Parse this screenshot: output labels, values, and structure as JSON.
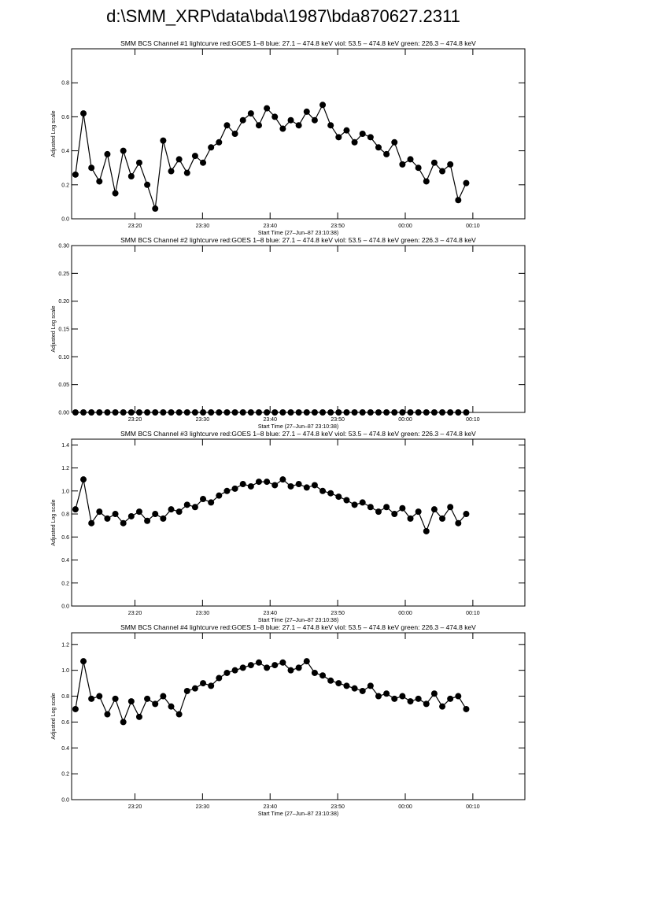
{
  "page_title": "d:\\SMM_XRP\\data\\bda\\1987\\bda870627.2311",
  "chart_data": [
    {
      "type": "line",
      "title": "SMM BCS Channel #1 lightcurve  red:GOES 1–8  blue: 27.1 – 474.8 keV  viol: 53.5 – 474.8 keV  green: 226.3 – 474.8 keV",
      "x_label": "Start Time (27–Jun–87 23:10:38)",
      "y_label": "Adjusted Log scale",
      "color": "#000000",
      "xlim": [
        10.63,
        77.7
      ],
      "ylim": [
        0,
        1.0
      ],
      "xticks": [
        {
          "value": 20,
          "label": "23:20"
        },
        {
          "value": 30,
          "label": "23:30"
        },
        {
          "value": 40,
          "label": "23:40"
        },
        {
          "value": 50,
          "label": "23:50"
        },
        {
          "value": 60,
          "label": "00:00"
        },
        {
          "value": 70,
          "label": "00:10"
        }
      ],
      "yticks": [
        {
          "value": 0,
          "label": "0.0"
        },
        0.2,
        0.4,
        0.6,
        0.8
      ],
      "x": [
        11.2,
        12.38,
        13.56,
        14.74,
        15.92,
        17.1,
        18.28,
        19.46,
        20.64,
        21.82,
        23.0,
        24.18,
        25.36,
        26.54,
        27.72,
        28.9,
        30.08,
        31.26,
        32.44,
        33.62,
        34.8,
        35.98,
        37.16,
        38.34,
        39.52,
        40.7,
        41.88,
        43.06,
        44.24,
        45.42,
        46.6,
        47.78,
        48.96,
        50.14,
        51.32,
        52.5,
        53.68,
        54.86,
        56.04,
        57.22,
        58.4,
        59.58,
        60.76,
        61.94,
        63.12,
        64.3,
        65.48,
        66.66,
        67.84,
        69.02
      ],
      "values": [
        0.26,
        0.62,
        0.3,
        0.22,
        0.38,
        0.15,
        0.4,
        0.25,
        0.33,
        0.2,
        0.06,
        0.46,
        0.28,
        0.35,
        0.27,
        0.37,
        0.33,
        0.42,
        0.45,
        0.55,
        0.5,
        0.58,
        0.62,
        0.55,
        0.65,
        0.6,
        0.53,
        0.58,
        0.55,
        0.63,
        0.58,
        0.67,
        0.55,
        0.48,
        0.52,
        0.45,
        0.5,
        0.48,
        0.42,
        0.38,
        0.45,
        0.32,
        0.35,
        0.3,
        0.22,
        0.33,
        0.28,
        0.32,
        0.11,
        0.21
      ]
    },
    {
      "type": "line",
      "title": "SMM BCS Channel #2 lightcurve  red:GOES 1–8  blue: 27.1 – 474.8 keV  viol: 53.5 – 474.8 keV  green: 226.3 – 474.8 keV",
      "x_label": "Start Time (27–Jun–87 23:10:38)",
      "y_label": "Adjusted Log scale",
      "color": "#000000",
      "xlim": [
        10.63,
        77.7
      ],
      "ylim": [
        0,
        0.3
      ],
      "xticks": [
        {
          "value": 20,
          "label": "23:20"
        },
        {
          "value": 30,
          "label": "23:30"
        },
        {
          "value": 40,
          "label": "23:40"
        },
        {
          "value": 50,
          "label": "23:50"
        },
        {
          "value": 60,
          "label": "00:00"
        },
        {
          "value": 70,
          "label": "00:10"
        }
      ],
      "yticks": [
        {
          "value": 0,
          "label": "0.00"
        },
        0.05,
        {
          "value": 0.1,
          "label": "0.10"
        },
        0.15,
        {
          "value": 0.2,
          "label": "0.20"
        },
        0.25,
        {
          "value": 0.3,
          "label": "0.30"
        }
      ],
      "x": [
        11.2,
        12.38,
        13.56,
        14.74,
        15.92,
        17.1,
        18.28,
        19.46,
        20.64,
        21.82,
        23.0,
        24.18,
        25.36,
        26.54,
        27.72,
        28.9,
        30.08,
        31.26,
        32.44,
        33.62,
        34.8,
        35.98,
        37.16,
        38.34,
        39.52,
        40.7,
        41.88,
        43.06,
        44.24,
        45.42,
        46.6,
        47.78,
        48.96,
        50.14,
        51.32,
        52.5,
        53.68,
        54.86,
        56.04,
        57.22,
        58.4,
        59.58,
        60.76,
        61.94,
        63.12,
        64.3,
        65.48,
        66.66,
        67.84,
        69.02
      ],
      "values": [
        0,
        0,
        0,
        0,
        0,
        0,
        0,
        0,
        0,
        0,
        0,
        0,
        0,
        0,
        0,
        0,
        0,
        0,
        0,
        0,
        0,
        0,
        0,
        0,
        0,
        0,
        0,
        0,
        0,
        0,
        0,
        0,
        0,
        0,
        0,
        0,
        0,
        0,
        0,
        0,
        0,
        0,
        0,
        0,
        0,
        0,
        0,
        0,
        0,
        0
      ]
    },
    {
      "type": "line",
      "title": "SMM BCS Channel #3 lightcurve  red:GOES 1–8  blue: 27.1 – 474.8 keV  viol: 53.5 – 474.8 keV  green: 226.3 – 474.8 keV",
      "x_label": "Start Time (27–Jun–87 23:10:38)",
      "y_label": "Adjusted Log scale",
      "color": "#000000",
      "xlim": [
        10.63,
        77.7
      ],
      "ylim": [
        0,
        1.45
      ],
      "xticks": [
        {
          "value": 20,
          "label": "23:20"
        },
        {
          "value": 30,
          "label": "23:30"
        },
        {
          "value": 40,
          "label": "23:40"
        },
        {
          "value": 50,
          "label": "23:50"
        },
        {
          "value": 60,
          "label": "00:00"
        },
        {
          "value": 70,
          "label": "00:10"
        }
      ],
      "yticks": [
        {
          "value": 0,
          "label": "0.0"
        },
        0.2,
        0.4,
        0.6,
        0.8,
        {
          "value": 1,
          "label": "1.0"
        },
        1.2,
        1.4
      ],
      "x": [
        11.2,
        12.38,
        13.56,
        14.74,
        15.92,
        17.1,
        18.28,
        19.46,
        20.64,
        21.82,
        23.0,
        24.18,
        25.36,
        26.54,
        27.72,
        28.9,
        30.08,
        31.26,
        32.44,
        33.62,
        34.8,
        35.98,
        37.16,
        38.34,
        39.52,
        40.7,
        41.88,
        43.06,
        44.24,
        45.42,
        46.6,
        47.78,
        48.96,
        50.14,
        51.32,
        52.5,
        53.68,
        54.86,
        56.04,
        57.22,
        58.4,
        59.58,
        60.76,
        61.94,
        63.12,
        64.3,
        65.48,
        66.66,
        67.84,
        69.02
      ],
      "values": [
        0.84,
        1.1,
        0.72,
        0.82,
        0.76,
        0.8,
        0.72,
        0.78,
        0.82,
        0.74,
        0.8,
        0.76,
        0.84,
        0.82,
        0.88,
        0.86,
        0.93,
        0.9,
        0.96,
        1.0,
        1.02,
        1.06,
        1.04,
        1.08,
        1.08,
        1.05,
        1.1,
        1.04,
        1.06,
        1.03,
        1.05,
        1.0,
        0.98,
        0.95,
        0.92,
        0.88,
        0.9,
        0.86,
        0.82,
        0.86,
        0.8,
        0.85,
        0.76,
        0.82,
        0.65,
        0.84,
        0.76,
        0.86,
        0.72,
        0.8
      ]
    },
    {
      "type": "line",
      "title": "SMM BCS Channel #4 lightcurve  red:GOES 1–8  blue: 27.1 – 474.8 keV  viol: 53.5 – 474.8 keV  green: 226.3 – 474.8 keV",
      "x_label": "Start Time (27–Jun–87 23:10:38)",
      "y_label": "Adjusted Log scale",
      "color": "#000000",
      "xlim": [
        10.63,
        77.7
      ],
      "ylim": [
        0,
        1.29
      ],
      "xticks": [
        {
          "value": 20,
          "label": "23:20"
        },
        {
          "value": 30,
          "label": "23:30"
        },
        {
          "value": 40,
          "label": "23:40"
        },
        {
          "value": 50,
          "label": "23:50"
        },
        {
          "value": 60,
          "label": "00:00"
        },
        {
          "value": 70,
          "label": "00:10"
        }
      ],
      "yticks": [
        {
          "value": 0,
          "label": "0.0"
        },
        0.2,
        0.4,
        0.6,
        0.8,
        {
          "value": 1,
          "label": "1.0"
        },
        1.2
      ],
      "x": [
        11.2,
        12.38,
        13.56,
        14.74,
        15.92,
        17.1,
        18.28,
        19.46,
        20.64,
        21.82,
        23.0,
        24.18,
        25.36,
        26.54,
        27.72,
        28.9,
        30.08,
        31.26,
        32.44,
        33.62,
        34.8,
        35.98,
        37.16,
        38.34,
        39.52,
        40.7,
        41.88,
        43.06,
        44.24,
        45.42,
        46.6,
        47.78,
        48.96,
        50.14,
        51.32,
        52.5,
        53.68,
        54.86,
        56.04,
        57.22,
        58.4,
        59.58,
        60.76,
        61.94,
        63.12,
        64.3,
        65.48,
        66.66,
        67.84,
        69.02
      ],
      "values": [
        0.7,
        1.07,
        0.78,
        0.8,
        0.66,
        0.78,
        0.6,
        0.76,
        0.64,
        0.78,
        0.74,
        0.8,
        0.72,
        0.66,
        0.84,
        0.86,
        0.9,
        0.88,
        0.94,
        0.98,
        1.0,
        1.02,
        1.04,
        1.06,
        1.02,
        1.04,
        1.06,
        1.0,
        1.02,
        1.07,
        0.98,
        0.96,
        0.92,
        0.9,
        0.88,
        0.86,
        0.84,
        0.88,
        0.8,
        0.82,
        0.78,
        0.8,
        0.76,
        0.78,
        0.74,
        0.82,
        0.72,
        0.78,
        0.8,
        0.7
      ]
    }
  ]
}
